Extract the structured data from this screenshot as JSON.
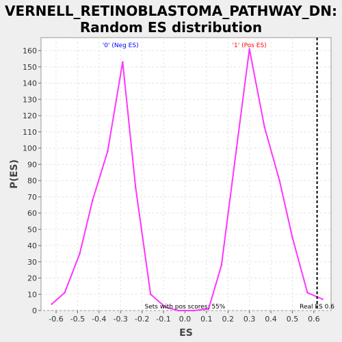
{
  "title_line1": "VERNELL_RETINOBLASTOMA_PATHWAY_DN:",
  "title_line2": "Random ES distribution",
  "chart_data": {
    "type": "line",
    "xlabel": "ES",
    "ylabel": "P(ES)",
    "xlim": [
      -0.67,
      0.68
    ],
    "ylim": [
      0,
      168
    ],
    "x_ticks": [
      "-0.6",
      "-0.5",
      "-0.4",
      "-0.3",
      "-0.2",
      "-0.1",
      "0.0",
      "0.1",
      "0.2",
      "0.3",
      "0.4",
      "0.5",
      "0.6"
    ],
    "y_ticks": [
      "0",
      "10",
      "20",
      "30",
      "40",
      "50",
      "60",
      "70",
      "80",
      "90",
      "100",
      "110",
      "120",
      "130",
      "140",
      "150",
      "160"
    ],
    "grid": true,
    "series": [
      {
        "color": "#ff33ff",
        "x": [
          -0.62,
          -0.56,
          -0.49,
          -0.43,
          -0.36,
          -0.29,
          -0.23,
          -0.16,
          -0.09,
          -0.03,
          0.04,
          0.11,
          0.17,
          0.24,
          0.3,
          0.37,
          0.44,
          0.5,
          0.57,
          0.64
        ],
        "y": [
          4,
          11,
          35,
          68,
          98,
          153,
          76,
          10,
          2,
          0,
          0,
          1,
          28,
          100,
          161,
          113,
          80,
          45,
          11,
          7
        ]
      }
    ],
    "annotations": {
      "neg_label": "'0' (Neg ES)",
      "pos_label": "'1' (Pos ES)",
      "neg_color": "#0000ff",
      "pos_color": "#ff0000",
      "pos_scores": "Sets with pos scores: 55%",
      "real_es_label": "Real ES 0.6",
      "real_es": 0.615
    }
  }
}
